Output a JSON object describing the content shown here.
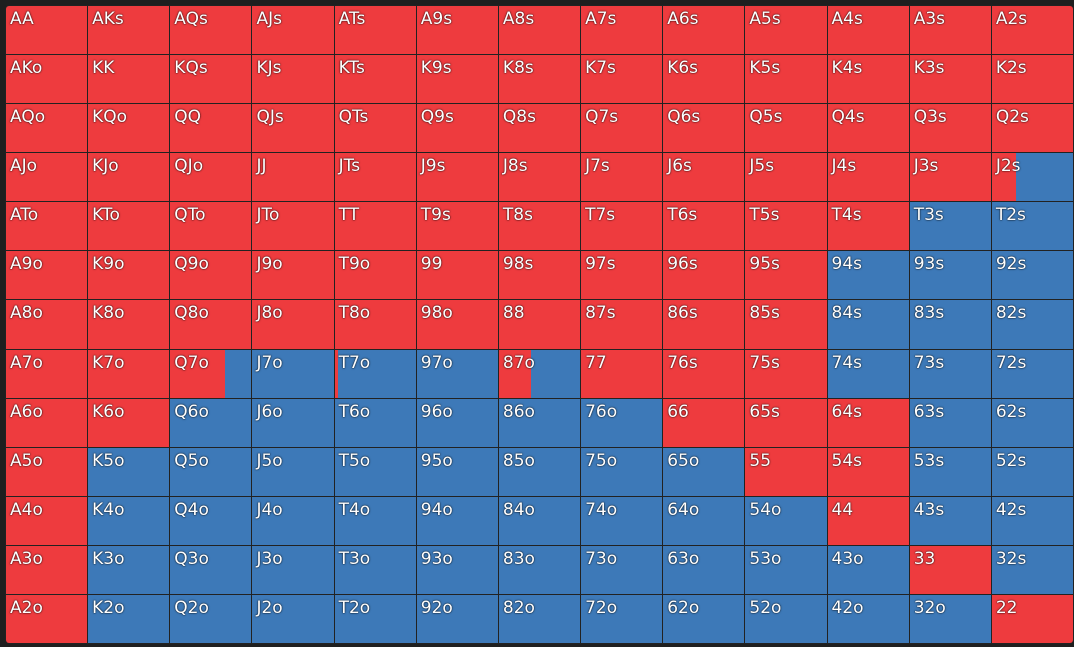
{
  "colors": {
    "raise": "#ee3b3e",
    "fold": "#3d79b8"
  },
  "range_grid": {
    "rows": [
      [
        [
          "AA",
          1
        ],
        [
          "AKs",
          1
        ],
        [
          "AQs",
          1
        ],
        [
          "AJs",
          1
        ],
        [
          "ATs",
          1
        ],
        [
          "A9s",
          1
        ],
        [
          "A8s",
          1
        ],
        [
          "A7s",
          1
        ],
        [
          "A6s",
          1
        ],
        [
          "A5s",
          1
        ],
        [
          "A4s",
          1
        ],
        [
          "A3s",
          1
        ],
        [
          "A2s",
          1
        ]
      ],
      [
        [
          "AKo",
          1
        ],
        [
          "KK",
          1
        ],
        [
          "KQs",
          1
        ],
        [
          "KJs",
          1
        ],
        [
          "KTs",
          1
        ],
        [
          "K9s",
          1
        ],
        [
          "K8s",
          1
        ],
        [
          "K7s",
          1
        ],
        [
          "K6s",
          1
        ],
        [
          "K5s",
          1
        ],
        [
          "K4s",
          1
        ],
        [
          "K3s",
          1
        ],
        [
          "K2s",
          1
        ]
      ],
      [
        [
          "AQo",
          1
        ],
        [
          "KQo",
          1
        ],
        [
          "QQ",
          1
        ],
        [
          "QJs",
          1
        ],
        [
          "QTs",
          1
        ],
        [
          "Q9s",
          1
        ],
        [
          "Q8s",
          1
        ],
        [
          "Q7s",
          1
        ],
        [
          "Q6s",
          1
        ],
        [
          "Q5s",
          1
        ],
        [
          "Q4s",
          1
        ],
        [
          "Q3s",
          1
        ],
        [
          "Q2s",
          1
        ]
      ],
      [
        [
          "AJo",
          1
        ],
        [
          "KJo",
          1
        ],
        [
          "QJo",
          1
        ],
        [
          "JJ",
          1
        ],
        [
          "JTs",
          1
        ],
        [
          "J9s",
          1
        ],
        [
          "J8s",
          1
        ],
        [
          "J7s",
          1
        ],
        [
          "J6s",
          1
        ],
        [
          "J5s",
          1
        ],
        [
          "J4s",
          1
        ],
        [
          "J3s",
          1
        ],
        [
          "J2s",
          0.3
        ]
      ],
      [
        [
          "ATo",
          1
        ],
        [
          "KTo",
          1
        ],
        [
          "QTo",
          1
        ],
        [
          "JTo",
          1
        ],
        [
          "TT",
          1
        ],
        [
          "T9s",
          1
        ],
        [
          "T8s",
          1
        ],
        [
          "T7s",
          1
        ],
        [
          "T6s",
          1
        ],
        [
          "T5s",
          1
        ],
        [
          "T4s",
          1
        ],
        [
          "T3s",
          0
        ],
        [
          "T2s",
          0
        ]
      ],
      [
        [
          "A9o",
          1
        ],
        [
          "K9o",
          1
        ],
        [
          "Q9o",
          1
        ],
        [
          "J9o",
          1
        ],
        [
          "T9o",
          1
        ],
        [
          "99",
          1
        ],
        [
          "98s",
          1
        ],
        [
          "97s",
          1
        ],
        [
          "96s",
          1
        ],
        [
          "95s",
          1
        ],
        [
          "94s",
          0
        ],
        [
          "93s",
          0
        ],
        [
          "92s",
          0
        ]
      ],
      [
        [
          "A8o",
          1
        ],
        [
          "K8o",
          1
        ],
        [
          "Q8o",
          1
        ],
        [
          "J8o",
          1
        ],
        [
          "T8o",
          1
        ],
        [
          "98o",
          1
        ],
        [
          "88",
          1
        ],
        [
          "87s",
          1
        ],
        [
          "86s",
          1
        ],
        [
          "85s",
          1
        ],
        [
          "84s",
          0
        ],
        [
          "83s",
          0
        ],
        [
          "82s",
          0
        ]
      ],
      [
        [
          "A7o",
          1
        ],
        [
          "K7o",
          1
        ],
        [
          "Q7o",
          0.68
        ],
        [
          "J7o",
          0
        ],
        [
          "T7o",
          0.04
        ],
        [
          "97o",
          0
        ],
        [
          "87o",
          0.4
        ],
        [
          "77",
          1
        ],
        [
          "76s",
          1
        ],
        [
          "75s",
          1
        ],
        [
          "74s",
          0
        ],
        [
          "73s",
          0
        ],
        [
          "72s",
          0
        ]
      ],
      [
        [
          "A6o",
          1
        ],
        [
          "K6o",
          1
        ],
        [
          "Q6o",
          0
        ],
        [
          "J6o",
          0
        ],
        [
          "T6o",
          0
        ],
        [
          "96o",
          0
        ],
        [
          "86o",
          0
        ],
        [
          "76o",
          0
        ],
        [
          "66",
          1
        ],
        [
          "65s",
          1
        ],
        [
          "64s",
          1
        ],
        [
          "63s",
          0
        ],
        [
          "62s",
          0
        ]
      ],
      [
        [
          "A5o",
          1
        ],
        [
          "K5o",
          0
        ],
        [
          "Q5o",
          0
        ],
        [
          "J5o",
          0
        ],
        [
          "T5o",
          0
        ],
        [
          "95o",
          0
        ],
        [
          "85o",
          0
        ],
        [
          "75o",
          0
        ],
        [
          "65o",
          0
        ],
        [
          "55",
          1
        ],
        [
          "54s",
          1
        ],
        [
          "53s",
          0
        ],
        [
          "52s",
          0
        ]
      ],
      [
        [
          "A4o",
          1
        ],
        [
          "K4o",
          0
        ],
        [
          "Q4o",
          0
        ],
        [
          "J4o",
          0
        ],
        [
          "T4o",
          0
        ],
        [
          "94o",
          0
        ],
        [
          "84o",
          0
        ],
        [
          "74o",
          0
        ],
        [
          "64o",
          0
        ],
        [
          "54o",
          0
        ],
        [
          "44",
          1
        ],
        [
          "43s",
          0
        ],
        [
          "42s",
          0
        ]
      ],
      [
        [
          "A3o",
          1
        ],
        [
          "K3o",
          0
        ],
        [
          "Q3o",
          0
        ],
        [
          "J3o",
          0
        ],
        [
          "T3o",
          0
        ],
        [
          "93o",
          0
        ],
        [
          "83o",
          0
        ],
        [
          "73o",
          0
        ],
        [
          "63o",
          0
        ],
        [
          "53o",
          0
        ],
        [
          "43o",
          0
        ],
        [
          "33",
          1
        ],
        [
          "32s",
          0
        ]
      ],
      [
        [
          "A2o",
          1
        ],
        [
          "K2o",
          0
        ],
        [
          "Q2o",
          0
        ],
        [
          "J2o",
          0
        ],
        [
          "T2o",
          0
        ],
        [
          "92o",
          0
        ],
        [
          "82o",
          0
        ],
        [
          "72o",
          0
        ],
        [
          "62o",
          0
        ],
        [
          "52o",
          0
        ],
        [
          "42o",
          0
        ],
        [
          "32o",
          0
        ],
        [
          "22",
          1
        ]
      ]
    ]
  }
}
